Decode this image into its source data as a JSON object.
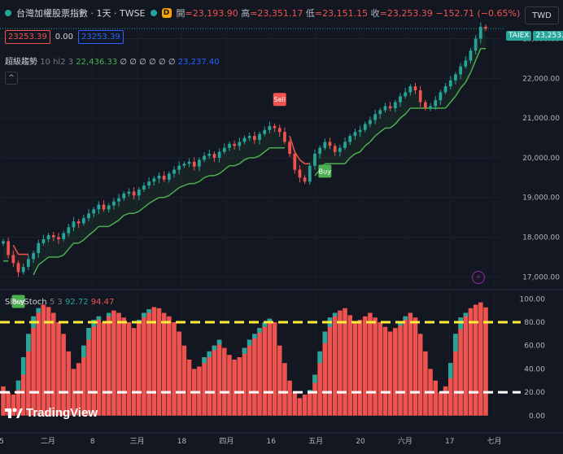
{
  "header": {
    "symbol": "台灣加權股票指數 · 1天 · TWSE",
    "badge": "D",
    "ohlc": [
      {
        "k": "開",
        "v": "=23,193.90"
      },
      {
        "k": "高",
        "v": "=23,351.17"
      },
      {
        "k": "低",
        "v": "=23,151.15"
      },
      {
        "k": "收",
        "v": "=23,253.39"
      }
    ],
    "change": "−152.71 (−0.65%)",
    "sell_box": "23253.39",
    "mid_value": "0.00",
    "buy_box": "23253.39",
    "currency": "TWD"
  },
  "indicator1": {
    "name": "超級趨勢",
    "params": "10 hl2 3",
    "value": "22,436.33",
    "zeros": "∅ ∅ ∅ ∅ ∅ ∅",
    "value2": "23,237.40",
    "collapse": "^"
  },
  "indicator2": {
    "name": "SlowStoch",
    "params": "5 3",
    "k": "92.72",
    "d": "94.47"
  },
  "price_tags": {
    "symbol": "TAIEX",
    "price": "23,253.39"
  },
  "watermark": "TradingView",
  "colors": {
    "up": "#26a69a",
    "down": "#ef5350",
    "bg": "#131722",
    "trend": "#4caf50",
    "trend_down": "#ef5350",
    "stoch_fill": "#ef5350",
    "stoch_d": "#26a69a",
    "band_high": "#ffeb3b",
    "band_low": "#ffffff",
    "alert_icon": "#9c27b0"
  },
  "chart_data": [
    {
      "type": "candlestick",
      "title": "台灣加權股票指數",
      "ylim": [
        16700,
        23400
      ],
      "y_ticks": [
        "23,000.00",
        "22,000.00",
        "21,000.00",
        "20,000.00",
        "19,000.00",
        "18,000.00",
        "17,000.00"
      ],
      "y_tick_values": [
        23000,
        22000,
        21000,
        20000,
        19000,
        18000,
        17000
      ],
      "x_ticks": [
        "5",
        "二月",
        "8",
        "三月",
        "18",
        "四月",
        "16",
        "五月",
        "20",
        "六月",
        "17",
        "七月"
      ],
      "close": [
        17900,
        17550,
        17350,
        17120,
        17250,
        17450,
        17600,
        17850,
        17950,
        18050,
        18000,
        17950,
        18100,
        18250,
        18400,
        18350,
        18480,
        18600,
        18700,
        18820,
        18700,
        18800,
        18900,
        18980,
        19100,
        19150,
        19050,
        19200,
        19300,
        19400,
        19480,
        19550,
        19450,
        19600,
        19700,
        19800,
        19850,
        19900,
        19780,
        19950,
        20050,
        20100,
        20000,
        20150,
        20250,
        20350,
        20300,
        20400,
        20500,
        20550,
        20450,
        20600,
        20700,
        20800,
        20750,
        20650,
        20400,
        20100,
        19700,
        19500,
        19400,
        19800,
        20100,
        20250,
        20400,
        20300,
        20150,
        20250,
        20400,
        20550,
        20650,
        20700,
        20850,
        20950,
        21100,
        21200,
        21300,
        21250,
        21400,
        21550,
        21650,
        21800,
        21700,
        21400,
        21250,
        21300,
        21450,
        21650,
        21800,
        21950,
        22100,
        22300,
        22450,
        22700,
        23000,
        23300,
        23253
      ],
      "signals": [
        {
          "index": 3,
          "label": "Buy"
        },
        {
          "index": 55,
          "label": "Sell"
        },
        {
          "index": 64,
          "label": "Buy"
        }
      ]
    },
    {
      "type": "bar",
      "title": "SlowStoch",
      "ylim": [
        -5,
        103
      ],
      "y_ticks": [
        "100.00",
        "80.00",
        "60.00",
        "40.00",
        "20.00",
        "0.00"
      ],
      "y_tick_values": [
        100,
        80,
        60,
        40,
        20,
        0
      ],
      "bands": [
        80,
        20
      ],
      "k": [
        25,
        20,
        18,
        30,
        50,
        70,
        85,
        92,
        95,
        93,
        88,
        80,
        70,
        55,
        40,
        45,
        60,
        75,
        82,
        85,
        80,
        88,
        90,
        88,
        84,
        80,
        75,
        82,
        88,
        91,
        93,
        92,
        88,
        85,
        80,
        72,
        60,
        48,
        40,
        42,
        50,
        55,
        60,
        65,
        58,
        52,
        48,
        50,
        58,
        65,
        70,
        75,
        80,
        83,
        80,
        60,
        45,
        30,
        20,
        15,
        18,
        22,
        35,
        55,
        72,
        84,
        88,
        90,
        92,
        86,
        80,
        82,
        85,
        88,
        84,
        80,
        76,
        72,
        75,
        80,
        85,
        88,
        84,
        70,
        55,
        40,
        30,
        20,
        25,
        45,
        70,
        84,
        88,
        92,
        95,
        97,
        92.72
      ],
      "d": [
        28,
        24,
        20,
        22,
        35,
        55,
        75,
        88,
        93,
        94,
        90,
        85,
        77,
        65,
        50,
        44,
        50,
        65,
        76,
        82,
        82,
        85,
        88,
        89,
        87,
        83,
        79,
        79,
        84,
        88,
        91,
        92,
        90,
        87,
        83,
        77,
        67,
        55,
        45,
        42,
        45,
        50,
        56,
        61,
        60,
        56,
        51,
        49,
        53,
        60,
        66,
        71,
        76,
        80,
        81,
        70,
        55,
        40,
        28,
        20,
        17,
        19,
        28,
        45,
        62,
        76,
        85,
        88,
        90,
        88,
        84,
        82,
        83,
        86,
        85,
        82,
        78,
        75,
        74,
        77,
        82,
        86,
        85,
        77,
        63,
        48,
        36,
        25,
        23,
        32,
        55,
        74,
        85,
        90,
        93,
        96,
        94.47
      ]
    }
  ]
}
